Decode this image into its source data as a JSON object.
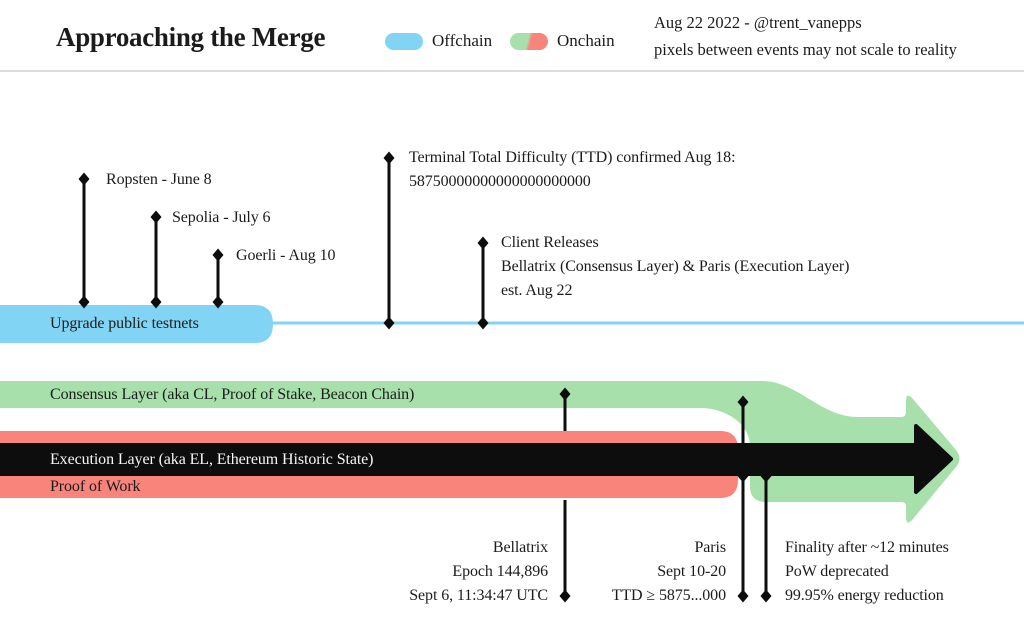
{
  "header": {
    "title": "Approaching the Merge",
    "legend": {
      "offchain_label": "Offchain",
      "onchain_label": "Onchain"
    },
    "credit_line1": "Aug 22 2022 - @trent_vanepps",
    "credit_line2": "pixels between events may not scale to reality"
  },
  "colors": {
    "offchain_blue": "#82d4f5",
    "onchain_green": "#a8e0ac",
    "onchain_red": "#f8847c",
    "arrow_black": "#0d0d0d"
  },
  "events": {
    "ropsten": "Ropsten - June 8",
    "sepolia": "Sepolia - July 6",
    "goerli": "Goerli - Aug 10",
    "ttd_line1": "Terminal Total Difficulty (TTD) confirmed Aug 18:",
    "ttd_line2": "58750000000000000000000",
    "client_line1": "Client Releases",
    "client_line2": "Bellatrix (Consensus Layer) & Paris (Execution Layer)",
    "client_line3": "est. Aug 22"
  },
  "bands": {
    "testnets": "Upgrade public testnets",
    "consensus": "Consensus Layer (aka CL, Proof of Stake, Beacon Chain)",
    "execution": "Execution Layer (aka EL, Ethereum Historic State)",
    "pow": "Proof of Work"
  },
  "annotations": {
    "bellatrix": {
      "line1": "Bellatrix",
      "line2": "Epoch 144,896",
      "line3": "Sept 6, 11:34:47 UTC"
    },
    "paris": {
      "line1": "Paris",
      "line2": "Sept 10-20",
      "line3": "TTD ≥ 5875...000"
    },
    "merge_result": {
      "line1": "Finality after ~12 minutes",
      "line2": "PoW deprecated",
      "line3": "99.95% energy reduction"
    }
  }
}
